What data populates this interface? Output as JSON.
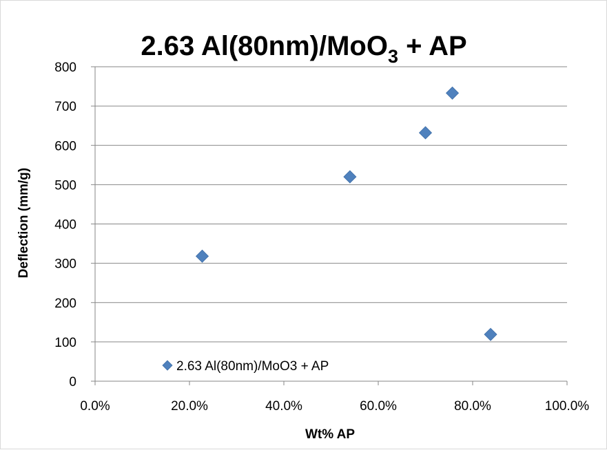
{
  "chart_data": {
    "type": "scatter",
    "title": {
      "main": "2.63 Al(80nm)/MoO",
      "subscript": "3",
      "suffix": " + AP"
    },
    "xlabel": "Wt% AP",
    "ylabel": "Deflection (mm/g)",
    "xlim": [
      0,
      1.0
    ],
    "ylim": [
      0,
      800
    ],
    "x_ticks": [
      0,
      0.2,
      0.4,
      0.6,
      0.8,
      1.0
    ],
    "x_tick_labels": [
      "0.0%",
      "20.0%",
      "40.0%",
      "60.0%",
      "80.0%",
      "100.0%"
    ],
    "y_ticks": [
      0,
      100,
      200,
      300,
      400,
      500,
      600,
      700,
      800
    ],
    "y_tick_labels": [
      "0",
      "100",
      "200",
      "300",
      "400",
      "500",
      "600",
      "700",
      "800"
    ],
    "grid": {
      "horizontal": true,
      "vertical": false
    },
    "legend_position": "bottom-left",
    "series": [
      {
        "name": "2.63 Al(80nm)/MoO3 + AP",
        "color": "#4f81bd",
        "marker": "diamond",
        "x": [
          0.227,
          0.54,
          0.7,
          0.757,
          0.838
        ],
        "y": [
          318,
          520,
          632,
          733,
          119
        ]
      }
    ]
  }
}
